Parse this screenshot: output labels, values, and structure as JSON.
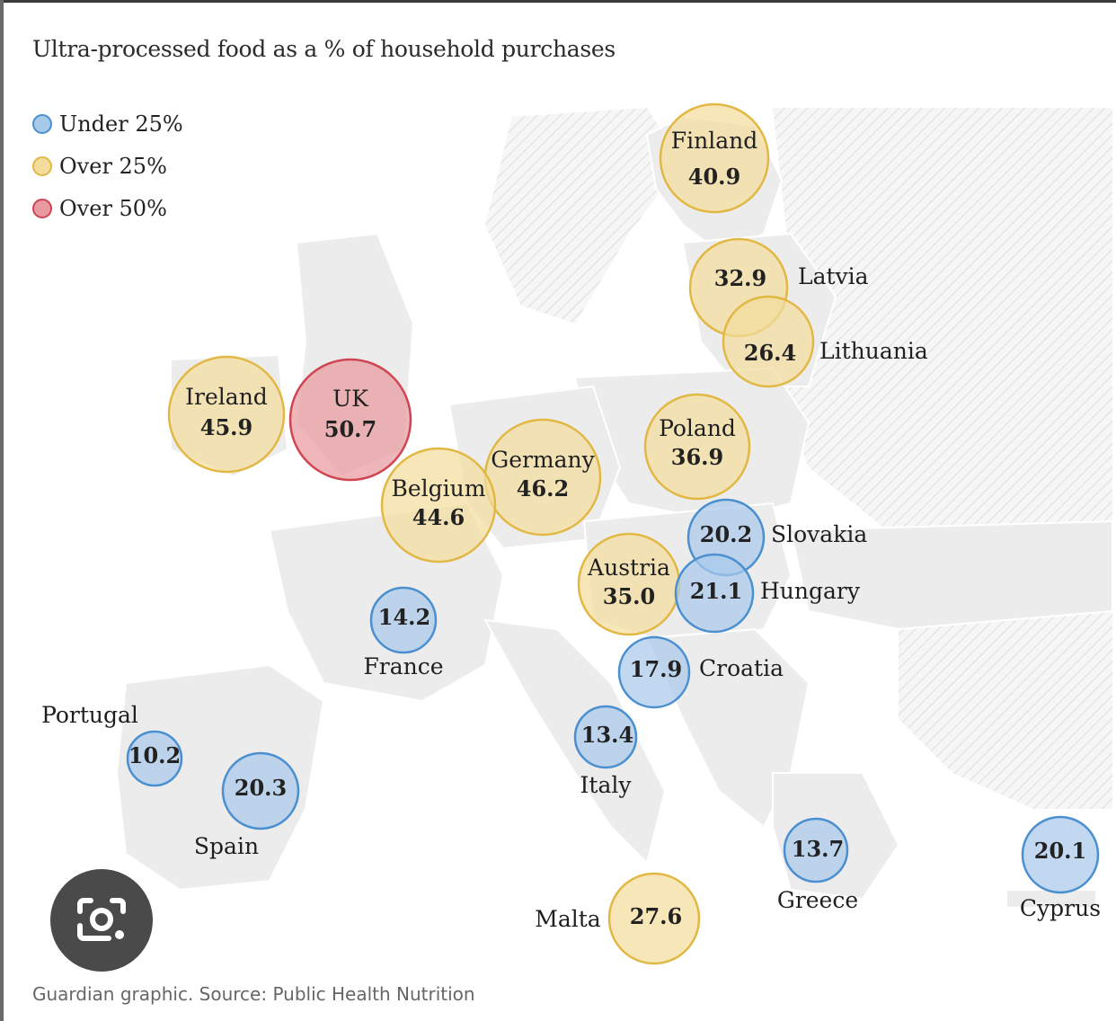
{
  "title": "Ultra-processed food as a % of household purchases",
  "source": "Guardian graphic. Source: Public Health Nutrition",
  "legend": [
    {
      "label": "Under 25%",
      "color": "#5b9bd5"
    },
    {
      "label": "Over 25%",
      "color": "#e8c25a"
    },
    {
      "label": "Over 50%",
      "color": "#d9545e"
    }
  ],
  "colors": {
    "under25_fill": "#a9c9ea",
    "under25_stroke": "#4a8fd0",
    "over25_fill": "#f3dc9c",
    "over25_stroke": "#e2b845",
    "over50_fill": "#e99aa0",
    "over50_stroke": "#cf4552",
    "land": "#ececec",
    "land_stroke": "#ffffff"
  },
  "countries": [
    {
      "name": "Finland",
      "value": "40.9",
      "category": "over25"
    },
    {
      "name": "Latvia",
      "value": "32.9",
      "category": "over25"
    },
    {
      "name": "Lithuania",
      "value": "26.4",
      "category": "over25"
    },
    {
      "name": "Ireland",
      "value": "45.9",
      "category": "over25"
    },
    {
      "name": "UK",
      "value": "50.7",
      "category": "over50"
    },
    {
      "name": "Poland",
      "value": "36.9",
      "category": "over25"
    },
    {
      "name": "Germany",
      "value": "46.2",
      "category": "over25"
    },
    {
      "name": "Belgium",
      "value": "44.6",
      "category": "over25"
    },
    {
      "name": "Slovakia",
      "value": "20.2",
      "category": "under25"
    },
    {
      "name": "Austria",
      "value": "35.0",
      "category": "over25"
    },
    {
      "name": "Hungary",
      "value": "21.1",
      "category": "under25"
    },
    {
      "name": "France",
      "value": "14.2",
      "category": "under25"
    },
    {
      "name": "Croatia",
      "value": "17.9",
      "category": "under25"
    },
    {
      "name": "Portugal",
      "value": "10.2",
      "category": "under25"
    },
    {
      "name": "Italy",
      "value": "13.4",
      "category": "under25"
    },
    {
      "name": "Spain",
      "value": "20.3",
      "category": "under25"
    },
    {
      "name": "Greece",
      "value": "13.7",
      "category": "under25"
    },
    {
      "name": "Cyprus",
      "value": "20.1",
      "category": "under25"
    },
    {
      "name": "Malta",
      "value": "27.6",
      "category": "over25"
    }
  ],
  "lens_icon": "camera-search-icon"
}
